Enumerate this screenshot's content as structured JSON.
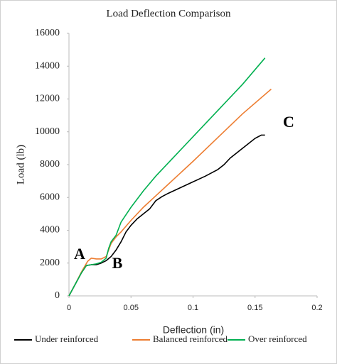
{
  "chart_data": {
    "type": "line",
    "title": "Load Deflection Comparison",
    "x_label": "Deflection (in)",
    "y_label": "Load (lb)",
    "xlim": [
      0,
      0.2
    ],
    "xticks": [
      0,
      0.05,
      0.1,
      0.15,
      0.2
    ],
    "ylim": [
      0,
      16000
    ],
    "yticks": [
      0,
      2000,
      4000,
      6000,
      8000,
      10000,
      12000,
      14000,
      16000
    ],
    "grid": false,
    "legend": "bottom",
    "annotations": [
      "A",
      "B",
      "C"
    ],
    "series": [
      {
        "name": "Under reinforced",
        "color": "#000000",
        "x": [
          0,
          0.005,
          0.01,
          0.014,
          0.018,
          0.022,
          0.026,
          0.03,
          0.034,
          0.038,
          0.042,
          0.046,
          0.05,
          0.055,
          0.06,
          0.065,
          0.07,
          0.075,
          0.08,
          0.09,
          0.1,
          0.11,
          0.12,
          0.125,
          0.13,
          0.14,
          0.15,
          0.155,
          0.158
        ],
        "values": [
          0,
          700,
          1400,
          1850,
          1900,
          1900,
          2000,
          2150,
          2400,
          2800,
          3300,
          3900,
          4300,
          4700,
          5000,
          5300,
          5800,
          6050,
          6250,
          6600,
          6950,
          7300,
          7700,
          8000,
          8400,
          9000,
          9600,
          9800,
          9800
        ]
      },
      {
        "name": "Balanced reinforced",
        "color": "#ed7d31",
        "x": [
          0,
          0.005,
          0.01,
          0.015,
          0.018,
          0.022,
          0.026,
          0.03,
          0.034,
          0.038,
          0.042,
          0.05,
          0.06,
          0.07,
          0.08,
          0.1,
          0.12,
          0.14,
          0.163
        ],
        "values": [
          0,
          700,
          1450,
          2100,
          2300,
          2250,
          2250,
          2400,
          3200,
          3600,
          3900,
          4600,
          5400,
          6100,
          6800,
          8200,
          9650,
          11100,
          12600
        ]
      },
      {
        "name": "Over reinforced",
        "color": "#00b050",
        "x": [
          0,
          0.005,
          0.01,
          0.014,
          0.018,
          0.022,
          0.026,
          0.03,
          0.032,
          0.034,
          0.038,
          0.042,
          0.05,
          0.06,
          0.07,
          0.08,
          0.1,
          0.12,
          0.14,
          0.158
        ],
        "values": [
          0,
          700,
          1400,
          1850,
          1900,
          1950,
          2050,
          2300,
          2900,
          3300,
          3700,
          4500,
          5400,
          6400,
          7300,
          8100,
          9700,
          11300,
          12900,
          14500
        ]
      }
    ]
  }
}
